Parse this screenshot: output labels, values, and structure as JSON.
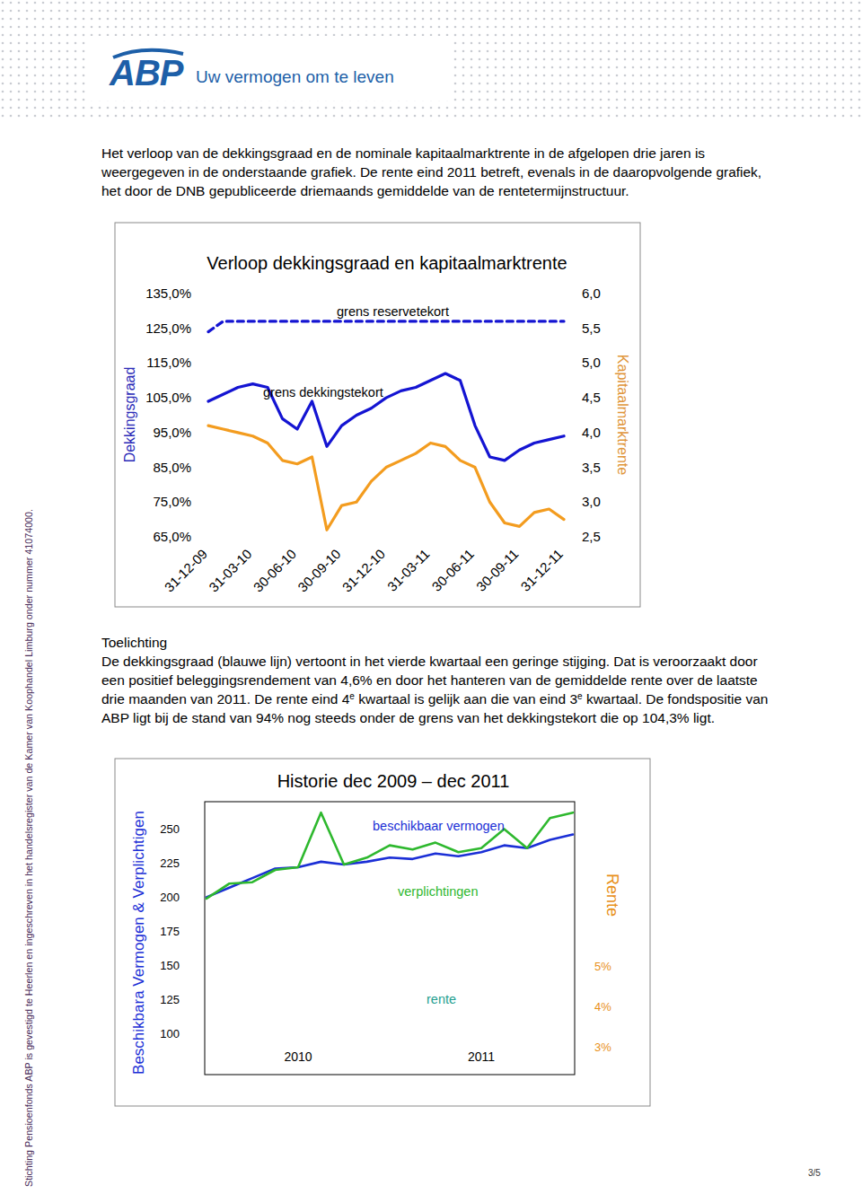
{
  "header": {
    "logo": "ABP",
    "tagline": "Uw vermogen om te leven"
  },
  "side_note": "Stichting Pensioenfonds ABP is gevestigd te Heerlen en ingeschreven in het handelsregister van de Kamer van Koophandel Limburg onder nummer 41074000.",
  "intro": [
    "Het verloop van de dekkingsgraad en de nominale kapitaalmarktrente in de afgelopen drie jaren is",
    "weergegeven in de onderstaande grafiek. De rente eind 2011 betreft, evenals in de daaropvolgende grafiek,",
    "het door de DNB gepubliceerde driemaands gemiddelde van de rentetermijnstructuur."
  ],
  "chart_data": [
    {
      "type": "line",
      "title": "Verloop dekkingsgraad en kapitaalmarktrente",
      "y_label": "Dekkingsgraad",
      "y2_label": "Kapitaalmarktrente",
      "categories": [
        "31-12-09",
        null,
        null,
        "31-03-10",
        null,
        null,
        "30-06-10",
        null,
        null,
        "30-09-10",
        null,
        null,
        "31-12-10",
        null,
        null,
        "31-03-11",
        null,
        null,
        "30-06-11",
        null,
        null,
        "30-09-11",
        null,
        null,
        "31-12-11"
      ],
      "series": [
        {
          "color": "#1414d2",
          "values": [
            104,
            106,
            108,
            109,
            108,
            99,
            96,
            104,
            91,
            97,
            100,
            102,
            105,
            107,
            108,
            110,
            112,
            110,
            97,
            88,
            87,
            90,
            92,
            93,
            94
          ]
        },
        {
          "color": "#f39c1f",
          "axis": "y2",
          "values": [
            4.1,
            4.05,
            4.0,
            3.95,
            3.85,
            3.6,
            3.55,
            3.65,
            2.6,
            2.95,
            3.0,
            3.3,
            3.5,
            3.6,
            3.7,
            3.85,
            3.8,
            3.6,
            3.5,
            3.0,
            2.7,
            2.65,
            2.85,
            2.9,
            2.75
          ]
        },
        {
          "name": "grens reservetekort",
          "color": "#1414d2",
          "line_style": "dashed",
          "values": [
            124,
            127,
            127,
            127,
            127,
            127,
            127,
            127,
            127,
            127,
            127,
            127,
            127,
            127,
            127,
            127,
            127,
            127,
            127,
            127,
            127,
            127,
            127,
            127,
            127
          ]
        }
      ],
      "annotations": [
        {
          "text": "grens dekkingstekort"
        }
      ],
      "ylim": [
        65,
        135
      ],
      "yticks": [
        {
          "value": 135,
          "label": "135,0%"
        },
        {
          "value": 125,
          "label": "125,0%"
        },
        {
          "value": 115,
          "label": "115,0%"
        },
        {
          "value": 105,
          "label": "105,0%"
        },
        {
          "value": 95,
          "label": "95,0%"
        },
        {
          "value": 85,
          "label": "85,0%"
        },
        {
          "value": 75,
          "label": "75,0%"
        },
        {
          "value": 65,
          "label": "65,0%"
        }
      ],
      "y2lim": [
        2.5,
        6
      ],
      "y2ticks": [
        {
          "value": 6,
          "label": "6,0"
        },
        {
          "value": 5.5,
          "label": "5,5"
        },
        {
          "value": 5,
          "label": "5,0"
        },
        {
          "value": 4.5,
          "label": "4,5"
        },
        {
          "value": 4,
          "label": "4,0"
        },
        {
          "value": 3.5,
          "label": "3,5"
        },
        {
          "value": 3,
          "label": "3,0"
        },
        {
          "value": 2.5,
          "label": "2,5"
        }
      ],
      "grid": false
    },
    {
      "type": "line",
      "title": "Historie dec 2009 – dec 2011",
      "y_label": "Beschikbara Vermogen & Verplichtigen",
      "y2_label": "Rente",
      "categories": [
        null,
        null,
        null,
        null,
        "2010",
        null,
        null,
        null,
        null,
        null,
        null,
        null,
        "2011",
        null,
        null,
        null,
        null
      ],
      "series": [
        {
          "name": "beschikbaar vermogen",
          "color": "#1b2fd6",
          "values": [
            200,
            207,
            214,
            221,
            222,
            226,
            224,
            226,
            229,
            228,
            232,
            230,
            233,
            238,
            236,
            242,
            246
          ]
        },
        {
          "name": "verplichtingen",
          "color": "#2eb82e",
          "values": [
            199,
            210,
            211,
            220,
            222,
            262,
            224,
            229,
            238,
            235,
            240,
            233,
            236,
            250,
            236,
            258,
            262
          ]
        }
      ],
      "annotations": [
        {
          "text": "rente"
        }
      ],
      "ylim": [
        70,
        270
      ],
      "yticks": [
        100,
        125,
        150,
        175,
        200,
        225,
        250
      ],
      "y2lim": [
        2.3,
        9.1
      ],
      "y2ticks": [
        {
          "value": 5,
          "label": "5%"
        },
        {
          "value": 4,
          "label": "4%"
        },
        {
          "value": 3,
          "label": "3%"
        }
      ],
      "grid": false
    }
  ],
  "toelichting": {
    "heading": "Toelichting",
    "lines": [
      [
        "De dekkingsgraad (blauwe lijn) vertoont in het vierde kwartaal een geringe stijging. Dat is veroorzaakt door"
      ],
      [
        "een positief beleggingsrendement van 4,6% en door het hanteren van de gemiddelde rente over de laatste"
      ],
      [
        "drie maanden van 2011. De rente eind 4",
        {
          "sup": "e"
        },
        " kwartaal is gelijk aan die van eind 3",
        {
          "sup": "e"
        },
        " kwartaal. De fondspositie van"
      ],
      [
        "ABP ligt bij de stand van 94% nog steeds onder de grens van het dekkingstekort die op 104,3% ligt."
      ]
    ]
  },
  "page_number": "3/5"
}
